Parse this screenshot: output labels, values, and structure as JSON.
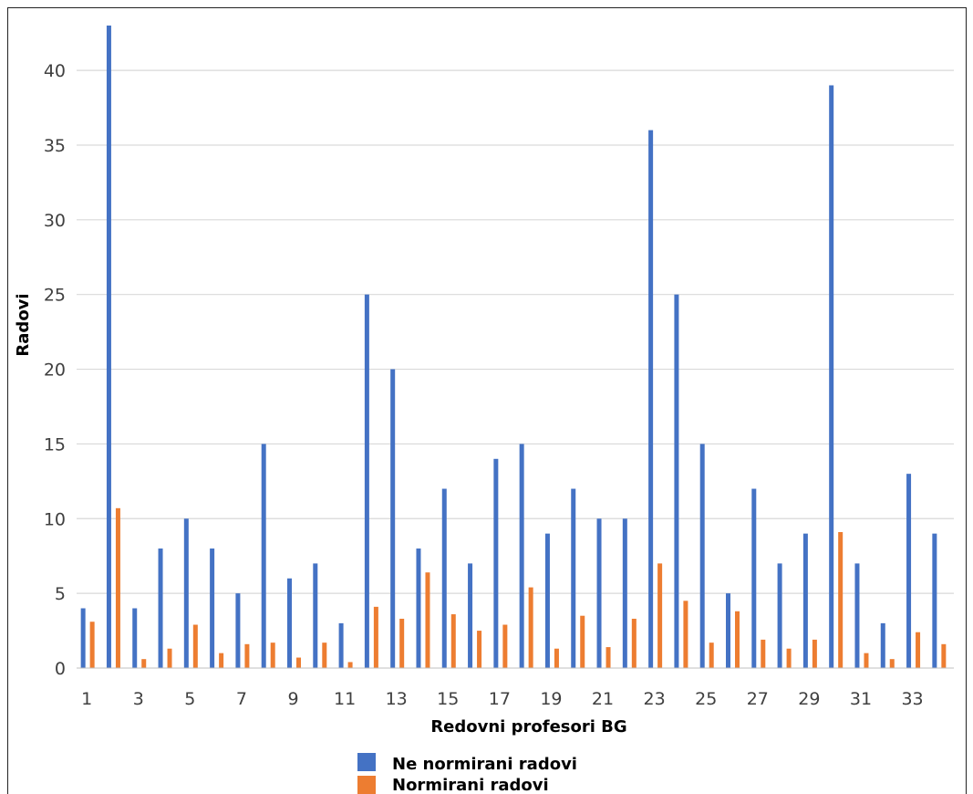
{
  "chart_data": {
    "type": "bar",
    "title": "",
    "xlabel": "Redovni profesori BG",
    "ylabel": "Radovi",
    "ylim": [
      0,
      43
    ],
    "yticks": [
      0,
      5,
      10,
      15,
      20,
      25,
      30,
      35,
      40
    ],
    "grid": true,
    "legend_position": "bottom",
    "categories": [
      1,
      2,
      3,
      4,
      5,
      6,
      7,
      8,
      9,
      10,
      11,
      12,
      13,
      14,
      15,
      16,
      17,
      18,
      19,
      20,
      21,
      22,
      23,
      24,
      25,
      26,
      27,
      28,
      29,
      30,
      31,
      32,
      33,
      34
    ],
    "xtick_labels": [
      "1",
      "",
      "3",
      "",
      "5",
      "",
      "7",
      "",
      "9",
      "",
      "11",
      "",
      "13",
      "",
      "15",
      "",
      "17",
      "",
      "19",
      "",
      "21",
      "",
      "23",
      "",
      "25",
      "",
      "27",
      "",
      "29",
      "",
      "31",
      "",
      "33",
      ""
    ],
    "series": [
      {
        "name": "Ne normirani radovi",
        "color": "#4472C4",
        "values": [
          4,
          43,
          4,
          8,
          10,
          8,
          5,
          15,
          6,
          7,
          3,
          25,
          20,
          8,
          12,
          7,
          14,
          15,
          9,
          12,
          10,
          10,
          36,
          25,
          15,
          5,
          12,
          7,
          9,
          39,
          7,
          3,
          13,
          9
        ]
      },
      {
        "name": "Normirani radovi",
        "color": "#ED7D31",
        "values": [
          3.1,
          10.7,
          0.6,
          1.3,
          2.9,
          1.0,
          1.6,
          1.7,
          0.7,
          1.7,
          0.4,
          4.1,
          3.3,
          6.4,
          3.6,
          2.5,
          2.9,
          5.4,
          1.3,
          3.5,
          1.4,
          3.3,
          7.0,
          4.5,
          1.7,
          3.8,
          1.9,
          1.3,
          1.9,
          9.1,
          1.0,
          0.6,
          2.4,
          1.6
        ]
      }
    ]
  }
}
